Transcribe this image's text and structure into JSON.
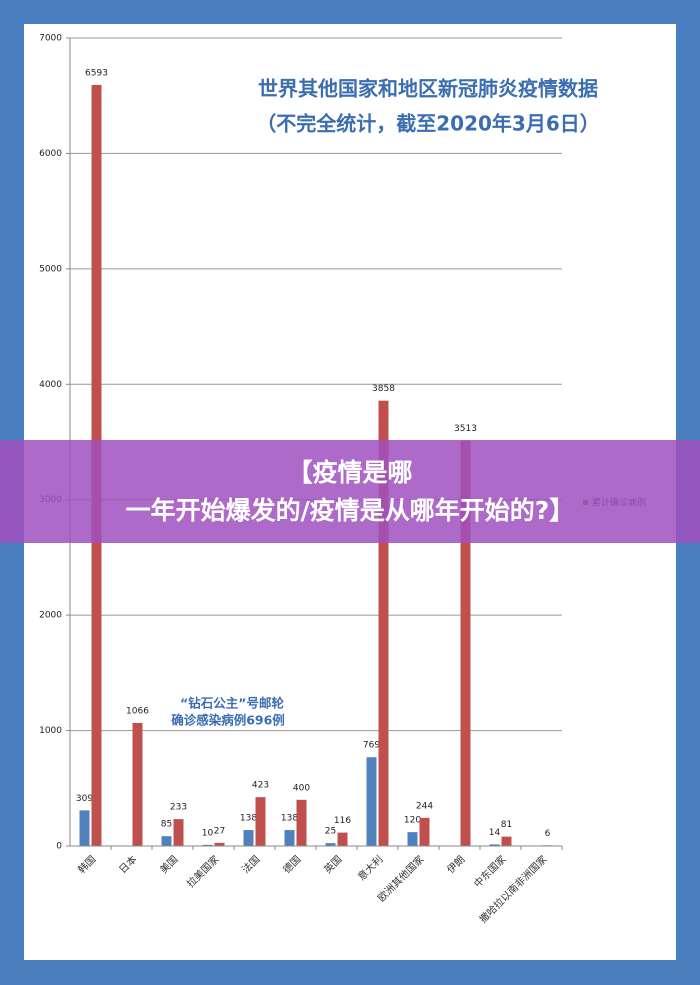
{
  "chart_data": {
    "type": "bar",
    "title": [
      "世界其他国家和地区新冠肺炎疫情数据",
      "（不完全统计，截至2020年3月6日）"
    ],
    "annotation": [
      "“钻石公主”号邮轮",
      "确诊感染病例696例"
    ],
    "banner": "【疫情是哪一年开始爆发的/疫情是从哪年开始的?】",
    "categories": [
      "韩国",
      "日本",
      "美国",
      "拉美国家",
      "法国",
      "德国",
      "英国",
      "意大利",
      "欧洲其他国家",
      "伊朗",
      "中东国家",
      "撒哈拉以南非洲国家"
    ],
    "series": [
      {
        "color": "#4f81bd",
        "values": [
          309,
          null,
          85,
          10,
          138,
          138,
          25,
          769,
          120,
          null,
          14,
          null
        ]
      },
      {
        "name": "累计确诊病例",
        "color": "#c0504d",
        "values": [
          6593,
          1066,
          233,
          27,
          423,
          400,
          116,
          3858,
          244,
          3513,
          81,
          6
        ]
      }
    ],
    "ylim": [
      0,
      7000
    ],
    "yticks": [
      0,
      1000,
      2000,
      3000,
      4000,
      5000,
      6000,
      7000
    ],
    "grid": true
  }
}
